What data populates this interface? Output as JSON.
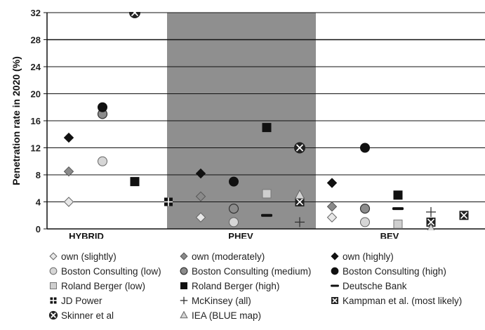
{
  "chart_data": {
    "type": "scatter",
    "title": "",
    "ylabel": "Penetration rate in 2020 (%)",
    "ylim": [
      0,
      32
    ],
    "yticks": [
      0,
      4,
      8,
      12,
      16,
      20,
      24,
      28,
      32
    ],
    "grid": true,
    "categories": [
      "HYBRID",
      "PHEV",
      "BEV"
    ],
    "highlighted_category": "PHEV",
    "series": [
      {
        "name": "own (slightly)",
        "marker": "diamond-open",
        "points": [
          {
            "category": "HYBRID",
            "y": 4
          },
          {
            "category": "PHEV",
            "y": 1.7
          },
          {
            "category": "BEV",
            "y": 1.7
          }
        ]
      },
      {
        "name": "own (moderately)",
        "marker": "diamond-grey",
        "points": [
          {
            "category": "HYBRID",
            "y": 8.5
          },
          {
            "category": "PHEV",
            "y": 4.8
          },
          {
            "category": "BEV",
            "y": 3.3
          }
        ]
      },
      {
        "name": "own (highly)",
        "marker": "diamond-black",
        "points": [
          {
            "category": "HYBRID",
            "y": 13.5
          },
          {
            "category": "PHEV",
            "y": 8.2
          },
          {
            "category": "BEV",
            "y": 6.8
          }
        ]
      },
      {
        "name": "Boston Consulting (low)",
        "marker": "circle-light",
        "points": [
          {
            "category": "HYBRID",
            "y": 10
          },
          {
            "category": "PHEV",
            "y": 1
          },
          {
            "category": "BEV",
            "y": 1
          }
        ]
      },
      {
        "name": "Boston Consulting (medium)",
        "marker": "circle-grey",
        "points": [
          {
            "category": "HYBRID",
            "y": 17
          },
          {
            "category": "PHEV",
            "y": 3
          },
          {
            "category": "BEV",
            "y": 3
          }
        ]
      },
      {
        "name": "Boston Consulting (high)",
        "marker": "circle-black",
        "points": [
          {
            "category": "HYBRID",
            "y": 18
          },
          {
            "category": "PHEV",
            "y": 7
          },
          {
            "category": "BEV",
            "y": 12
          }
        ]
      },
      {
        "name": "Roland Berger (low)",
        "marker": "square-light",
        "points": [
          {
            "category": "PHEV",
            "y": 5.2
          },
          {
            "category": "BEV",
            "y": 0.7
          }
        ]
      },
      {
        "name": "Roland Berger (high)",
        "marker": "square-black",
        "points": [
          {
            "category": "HYBRID",
            "y": 7
          },
          {
            "category": "PHEV",
            "y": 15
          },
          {
            "category": "BEV",
            "y": 5
          }
        ]
      },
      {
        "name": "Deutsche Bank",
        "marker": "dash",
        "points": [
          {
            "category": "PHEV",
            "y": 2
          },
          {
            "category": "BEV",
            "y": 3
          }
        ]
      },
      {
        "name": "JD Power",
        "marker": "jd",
        "points": [
          {
            "category": "HYBRID",
            "y": 4
          }
        ]
      },
      {
        "name": "McKinsey (all)",
        "marker": "plus",
        "points": [
          {
            "category": "PHEV",
            "y": 1
          },
          {
            "category": "BEV",
            "y": 2.5
          }
        ]
      },
      {
        "name": "Kampman et al. (most likely)",
        "marker": "kampman",
        "points": [
          {
            "category": "PHEV",
            "y": 4
          },
          {
            "category": "BEV",
            "y": 1
          },
          {
            "category": "BEV",
            "y": 2
          }
        ]
      },
      {
        "name": "Skinner et al",
        "marker": "skinner",
        "points": [
          {
            "category": "HYBRID",
            "y": 32
          },
          {
            "category": "PHEV",
            "y": 12
          }
        ]
      },
      {
        "name": "IEA (BLUE map)",
        "marker": "triangle",
        "points": [
          {
            "category": "PHEV",
            "y": 5
          },
          {
            "category": "BEV",
            "y": 0
          }
        ]
      }
    ]
  }
}
